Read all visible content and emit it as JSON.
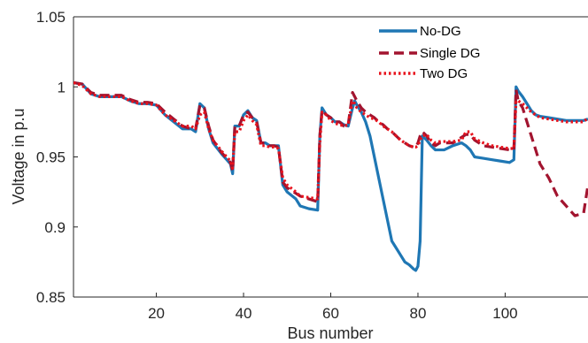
{
  "chart_data": {
    "type": "line",
    "title": "",
    "xlabel": "Bus number",
    "ylabel": "Voltage in p.u",
    "xlim": [
      1,
      119
    ],
    "ylim": [
      0.85,
      1.05
    ],
    "xticks": [
      20,
      40,
      60,
      80,
      100
    ],
    "yticks": [
      0.85,
      0.9,
      0.95,
      1,
      1.05
    ],
    "xtick_labels": [
      "20",
      "40",
      "60",
      "80",
      "100"
    ],
    "ytick_labels": [
      "0.85",
      "0.9",
      "0.95",
      "1",
      "1.05"
    ],
    "grid": false,
    "legend_position": "top-right",
    "series": [
      {
        "name": "No-DG",
        "color": "#1f77b4",
        "style": "solid",
        "x": [
          1,
          3,
          5,
          7,
          10,
          12,
          14,
          16,
          18,
          20,
          22,
          24,
          26,
          28,
          29,
          30,
          31,
          32,
          33,
          35,
          37,
          37.5,
          38,
          39,
          40,
          41,
          42,
          43,
          44,
          45,
          46,
          47,
          48,
          49,
          50,
          52,
          53,
          55,
          57,
          57.5,
          58,
          59,
          60,
          61,
          62,
          63,
          64,
          65,
          65.5,
          66,
          67,
          68,
          69,
          70,
          71,
          72,
          73,
          74,
          75,
          76,
          77,
          78,
          79,
          79.5,
          80,
          80.5,
          81,
          82,
          83,
          84,
          85,
          86,
          88,
          90,
          91,
          92,
          93,
          95,
          97,
          99,
          101,
          102,
          102.5,
          103,
          104,
          105,
          106,
          107,
          108,
          110,
          112,
          114,
          116,
          118,
          119
        ],
        "y": [
          1.003,
          1.002,
          0.995,
          0.993,
          0.993,
          0.993,
          0.99,
          0.988,
          0.988,
          0.987,
          0.98,
          0.975,
          0.97,
          0.97,
          0.968,
          0.988,
          0.985,
          0.97,
          0.96,
          0.952,
          0.945,
          0.938,
          0.972,
          0.972,
          0.98,
          0.983,
          0.978,
          0.976,
          0.96,
          0.96,
          0.958,
          0.958,
          0.958,
          0.93,
          0.925,
          0.92,
          0.915,
          0.913,
          0.912,
          0.965,
          0.985,
          0.98,
          0.978,
          0.975,
          0.975,
          0.973,
          0.972,
          0.985,
          0.99,
          0.987,
          0.982,
          0.975,
          0.965,
          0.95,
          0.935,
          0.92,
          0.905,
          0.89,
          0.885,
          0.88,
          0.875,
          0.873,
          0.87,
          0.869,
          0.872,
          0.89,
          0.965,
          0.962,
          0.958,
          0.955,
          0.955,
          0.955,
          0.958,
          0.96,
          0.958,
          0.955,
          0.95,
          0.949,
          0.948,
          0.947,
          0.946,
          0.948,
          1.0,
          0.997,
          0.993,
          0.988,
          0.983,
          0.98,
          0.979,
          0.978,
          0.977,
          0.976,
          0.976,
          0.976,
          0.977
        ]
      },
      {
        "name": "Single DG",
        "color": "#a2142f",
        "style": "dashed",
        "x": [
          1,
          3,
          5,
          7,
          10,
          12,
          14,
          16,
          18,
          20,
          22,
          24,
          26,
          28,
          29,
          30,
          31,
          32,
          33,
          35,
          37,
          37.5,
          38,
          39,
          40,
          41,
          42,
          43,
          44,
          45,
          46,
          47,
          48,
          49,
          50,
          52,
          53,
          55,
          57,
          57.5,
          58,
          59,
          60,
          61,
          62,
          63,
          64,
          65,
          65.5,
          66,
          67,
          68,
          69,
          70,
          71,
          72,
          73,
          74,
          75,
          76,
          77,
          78,
          79,
          79.5,
          80,
          80.5,
          81,
          82,
          83,
          84,
          85,
          86,
          88,
          90,
          91,
          92,
          93,
          95,
          97,
          99,
          101,
          102,
          102.5,
          103,
          104,
          105,
          106,
          107,
          108,
          110,
          112,
          114,
          116,
          118,
          119
        ],
        "y": [
          1.003,
          1.002,
          0.996,
          0.994,
          0.994,
          0.994,
          0.991,
          0.989,
          0.989,
          0.988,
          0.982,
          0.977,
          0.972,
          0.97,
          0.97,
          0.987,
          0.985,
          0.972,
          0.962,
          0.953,
          0.946,
          0.94,
          0.972,
          0.972,
          0.98,
          0.982,
          0.978,
          0.975,
          0.96,
          0.96,
          0.958,
          0.958,
          0.957,
          0.932,
          0.928,
          0.924,
          0.922,
          0.92,
          0.918,
          0.965,
          0.983,
          0.98,
          0.978,
          0.975,
          0.975,
          0.972,
          0.973,
          0.996,
          0.993,
          0.99,
          0.985,
          0.982,
          0.98,
          0.978,
          0.975,
          0.973,
          0.97,
          0.968,
          0.965,
          0.962,
          0.96,
          0.958,
          0.957,
          0.957,
          0.96,
          0.965,
          0.968,
          0.965,
          0.96,
          0.958,
          0.96,
          0.96,
          0.96,
          0.964,
          0.966,
          0.966,
          0.962,
          0.958,
          0.957,
          0.956,
          0.955,
          0.955,
          0.998,
          0.99,
          0.985,
          0.975,
          0.965,
          0.955,
          0.945,
          0.935,
          0.922,
          0.915,
          0.908,
          0.91,
          0.93
        ]
      },
      {
        "name": "Two DG",
        "color": "#e8121c",
        "style": "dotted",
        "x": [
          1,
          3,
          5,
          7,
          10,
          12,
          14,
          16,
          18,
          20,
          22,
          24,
          26,
          28,
          29,
          30,
          31,
          32,
          33,
          35,
          37,
          37.5,
          38,
          39,
          40,
          41,
          42,
          43,
          44,
          45,
          46,
          47,
          48,
          49,
          50,
          52,
          53,
          55,
          57,
          57.5,
          58,
          59,
          60,
          61,
          62,
          63,
          64,
          65,
          65.5,
          66,
          67,
          68,
          69,
          70,
          71,
          72,
          73,
          74,
          75,
          76,
          77,
          78,
          79,
          79.5,
          80,
          80.5,
          81,
          82,
          83,
          84,
          85,
          86,
          88,
          90,
          91,
          92,
          93,
          95,
          97,
          99,
          101,
          102,
          102.5,
          103,
          104,
          105,
          106,
          107,
          108,
          110,
          112,
          114,
          116,
          118,
          119
        ],
        "y": [
          1.003,
          1.001,
          0.995,
          0.993,
          0.993,
          0.993,
          0.99,
          0.988,
          0.988,
          0.987,
          0.98,
          0.976,
          0.972,
          0.972,
          0.97,
          0.98,
          0.982,
          0.97,
          0.962,
          0.954,
          0.947,
          0.942,
          0.968,
          0.968,
          0.976,
          0.98,
          0.976,
          0.973,
          0.958,
          0.958,
          0.957,
          0.957,
          0.956,
          0.935,
          0.93,
          0.925,
          0.922,
          0.921,
          0.92,
          0.96,
          0.982,
          0.98,
          0.976,
          0.974,
          0.973,
          0.972,
          0.973,
          0.99,
          0.988,
          0.985,
          0.982,
          0.98,
          0.978,
          0.977,
          0.975,
          0.972,
          0.97,
          0.968,
          0.965,
          0.962,
          0.96,
          0.958,
          0.957,
          0.957,
          0.958,
          0.962,
          0.965,
          0.966,
          0.962,
          0.96,
          0.961,
          0.961,
          0.961,
          0.962,
          0.968,
          0.968,
          0.963,
          0.96,
          0.958,
          0.957,
          0.956,
          0.956,
          0.99,
          0.99,
          0.988,
          0.985,
          0.982,
          0.98,
          0.978,
          0.977,
          0.976,
          0.975,
          0.975,
          0.975,
          0.978
        ]
      }
    ]
  }
}
